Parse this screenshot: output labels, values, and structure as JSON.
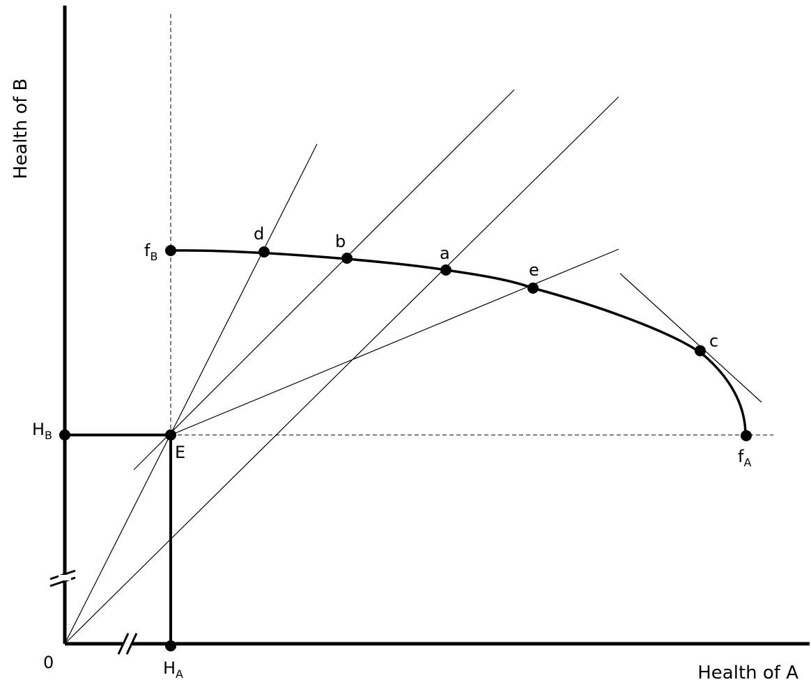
{
  "axes": {
    "x_title": "Health of A",
    "y_title": "Health of B",
    "origin_label": "0"
  },
  "points": {
    "E": "E",
    "a": "a",
    "b": "b",
    "c": "c",
    "d": "d",
    "e": "e",
    "fB": {
      "base": "f",
      "sub": "B"
    },
    "fA": {
      "base": "f",
      "sub": "A"
    },
    "HB": {
      "base": "H",
      "sub": "B"
    },
    "HA": {
      "base": "H",
      "sub": "A"
    }
  },
  "elements": {
    "frontier": "health possibility frontier through fB, d, b, a, e, c, fA",
    "axis_breaks": "both axes show a break mark (//) near the origin"
  }
}
